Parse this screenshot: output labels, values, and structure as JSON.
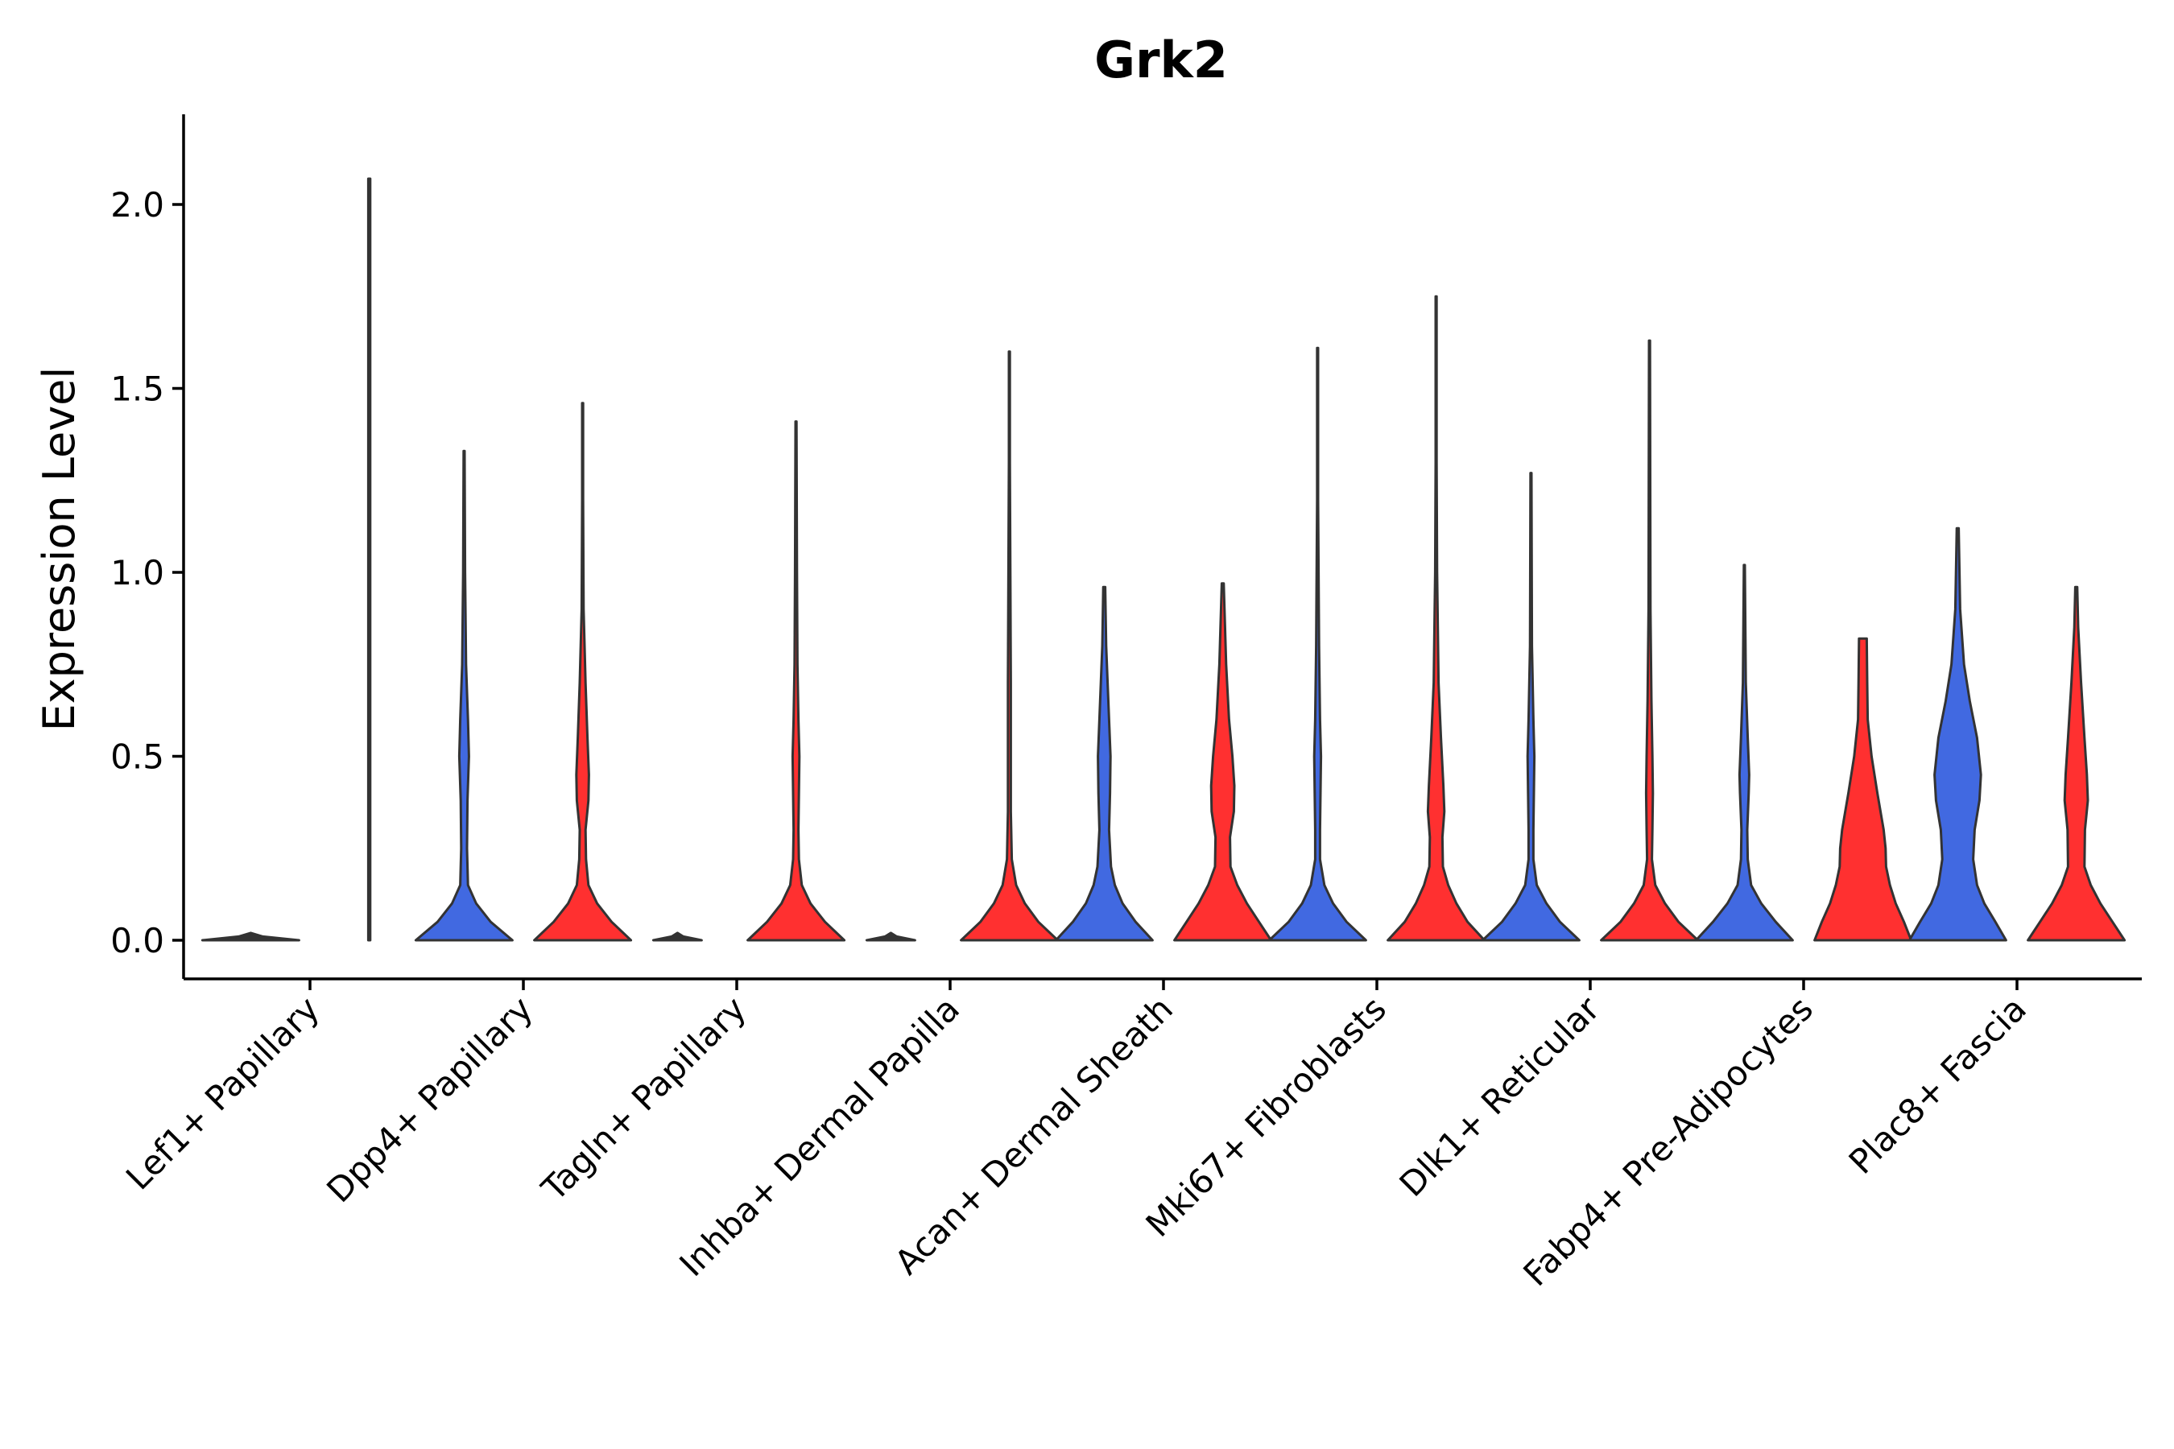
{
  "chart_data": {
    "type": "violin",
    "title": "Grk2",
    "xlabel": "",
    "ylabel": "Expression Level",
    "ylim": [
      -0.11,
      2.25
    ],
    "yticks": [
      0.0,
      0.5,
      1.0,
      1.5,
      2.0
    ],
    "ytick_labels": [
      "0.0",
      "0.5",
      "1.0",
      "1.5",
      "2.0"
    ],
    "grid": false,
    "legend": "none",
    "colors": {
      "group1": "#4169E1",
      "group2": "#FF3030",
      "single": "#333333"
    },
    "categories": [
      "Lef1+ Papillary",
      "Dpp4+ Papillary",
      "Tagln+ Papillary",
      "Inhba+ Dermal Papilla",
      "Acan+ Dermal Sheath",
      "Mki67+ Fibroblasts",
      "Dlk1+ Reticular",
      "Fabp4+ Pre-Adipocytes",
      "Plac8+ Fascia"
    ],
    "violins": [
      {
        "category": "Lef1+ Papillary",
        "group": "group1",
        "max": 0.0,
        "profile": [
          [
            0,
            1.0
          ],
          [
            0.01,
            0.25
          ],
          [
            0.02,
            0
          ]
        ]
      },
      {
        "category": "Lef1+ Papillary",
        "group": "group2",
        "max": 2.07,
        "profile": [
          [
            0,
            0.02
          ],
          [
            2.07,
            0.02
          ]
        ]
      },
      {
        "category": "Dpp4+ Papillary",
        "group": "group1",
        "max": 1.33,
        "profile": [
          [
            0,
            1.0
          ],
          [
            0.05,
            0.55
          ],
          [
            0.1,
            0.25
          ],
          [
            0.15,
            0.08
          ],
          [
            0.25,
            0.06
          ],
          [
            0.38,
            0.07
          ],
          [
            0.5,
            0.1
          ],
          [
            0.6,
            0.08
          ],
          [
            0.75,
            0.04
          ],
          [
            1.0,
            0.02
          ],
          [
            1.33,
            0.01
          ]
        ]
      },
      {
        "category": "Dpp4+ Papillary",
        "group": "group2",
        "max": 1.46,
        "profile": [
          [
            0,
            1.0
          ],
          [
            0.05,
            0.6
          ],
          [
            0.1,
            0.3
          ],
          [
            0.15,
            0.12
          ],
          [
            0.22,
            0.07
          ],
          [
            0.3,
            0.06
          ],
          [
            0.38,
            0.12
          ],
          [
            0.45,
            0.13
          ],
          [
            0.55,
            0.1
          ],
          [
            0.7,
            0.06
          ],
          [
            0.9,
            0.02
          ],
          [
            1.2,
            0.01
          ],
          [
            1.46,
            0.01
          ]
        ]
      },
      {
        "category": "Tagln+ Papillary",
        "group": "group1",
        "max": 0.0,
        "profile": [
          [
            0,
            0.5
          ],
          [
            0.01,
            0.12
          ],
          [
            0.02,
            0
          ]
        ]
      },
      {
        "category": "Tagln+ Papillary",
        "group": "group2",
        "max": 1.41,
        "profile": [
          [
            0,
            1.0
          ],
          [
            0.05,
            0.6
          ],
          [
            0.1,
            0.3
          ],
          [
            0.15,
            0.12
          ],
          [
            0.22,
            0.06
          ],
          [
            0.3,
            0.05
          ],
          [
            0.4,
            0.06
          ],
          [
            0.5,
            0.07
          ],
          [
            0.6,
            0.05
          ],
          [
            0.75,
            0.03
          ],
          [
            1.0,
            0.02
          ],
          [
            1.41,
            0.01
          ]
        ]
      },
      {
        "category": "Inhba+ Dermal Papilla",
        "group": "group1",
        "max": 0.0,
        "profile": [
          [
            0,
            0.5
          ],
          [
            0.01,
            0.12
          ],
          [
            0.02,
            0
          ]
        ]
      },
      {
        "category": "Inhba+ Dermal Papilla",
        "group": "group2",
        "max": 1.6,
        "profile": [
          [
            0,
            1.0
          ],
          [
            0.05,
            0.6
          ],
          [
            0.1,
            0.32
          ],
          [
            0.15,
            0.14
          ],
          [
            0.22,
            0.05
          ],
          [
            0.35,
            0.03
          ],
          [
            0.5,
            0.03
          ],
          [
            0.7,
            0.03
          ],
          [
            1.0,
            0.02
          ],
          [
            1.3,
            0.01
          ],
          [
            1.6,
            0.01
          ]
        ]
      },
      {
        "category": "Acan+ Dermal Sheath",
        "group": "group1",
        "max": 0.96,
        "profile": [
          [
            0,
            1.0
          ],
          [
            0.05,
            0.65
          ],
          [
            0.1,
            0.38
          ],
          [
            0.15,
            0.22
          ],
          [
            0.2,
            0.14
          ],
          [
            0.3,
            0.1
          ],
          [
            0.4,
            0.12
          ],
          [
            0.5,
            0.13
          ],
          [
            0.6,
            0.1
          ],
          [
            0.7,
            0.07
          ],
          [
            0.8,
            0.04
          ],
          [
            0.96,
            0.02
          ]
        ]
      },
      {
        "category": "Acan+ Dermal Sheath",
        "group": "group2",
        "max": 0.97,
        "profile": [
          [
            0,
            1.0
          ],
          [
            0.05,
            0.75
          ],
          [
            0.1,
            0.5
          ],
          [
            0.15,
            0.3
          ],
          [
            0.2,
            0.16
          ],
          [
            0.28,
            0.15
          ],
          [
            0.35,
            0.23
          ],
          [
            0.42,
            0.24
          ],
          [
            0.5,
            0.2
          ],
          [
            0.6,
            0.13
          ],
          [
            0.75,
            0.07
          ],
          [
            0.97,
            0.02
          ]
        ]
      },
      {
        "category": "Mki67+ Fibroblasts",
        "group": "group1",
        "max": 1.61,
        "profile": [
          [
            0,
            1.0
          ],
          [
            0.05,
            0.6
          ],
          [
            0.1,
            0.32
          ],
          [
            0.15,
            0.14
          ],
          [
            0.22,
            0.05
          ],
          [
            0.3,
            0.05
          ],
          [
            0.4,
            0.06
          ],
          [
            0.5,
            0.07
          ],
          [
            0.6,
            0.05
          ],
          [
            0.8,
            0.03
          ],
          [
            1.2,
            0.01
          ],
          [
            1.61,
            0.01
          ]
        ]
      },
      {
        "category": "Mki67+ Fibroblasts",
        "group": "group2",
        "max": 1.75,
        "profile": [
          [
            0,
            1.0
          ],
          [
            0.05,
            0.65
          ],
          [
            0.1,
            0.42
          ],
          [
            0.15,
            0.25
          ],
          [
            0.2,
            0.14
          ],
          [
            0.28,
            0.13
          ],
          [
            0.35,
            0.17
          ],
          [
            0.42,
            0.15
          ],
          [
            0.55,
            0.1
          ],
          [
            0.7,
            0.05
          ],
          [
            1.0,
            0.02
          ],
          [
            1.3,
            0.01
          ],
          [
            1.75,
            0.01
          ]
        ]
      },
      {
        "category": "Dlk1+ Reticular",
        "group": "group1",
        "max": 1.27,
        "profile": [
          [
            0,
            1.0
          ],
          [
            0.05,
            0.6
          ],
          [
            0.1,
            0.32
          ],
          [
            0.15,
            0.12
          ],
          [
            0.22,
            0.05
          ],
          [
            0.3,
            0.05
          ],
          [
            0.4,
            0.06
          ],
          [
            0.5,
            0.07
          ],
          [
            0.6,
            0.05
          ],
          [
            0.8,
            0.02
          ],
          [
            1.27,
            0.01
          ]
        ]
      },
      {
        "category": "Dlk1+ Reticular",
        "group": "group2",
        "max": 1.63,
        "profile": [
          [
            0,
            1.0
          ],
          [
            0.05,
            0.6
          ],
          [
            0.1,
            0.32
          ],
          [
            0.15,
            0.12
          ],
          [
            0.22,
            0.05
          ],
          [
            0.3,
            0.06
          ],
          [
            0.4,
            0.07
          ],
          [
            0.5,
            0.06
          ],
          [
            0.65,
            0.04
          ],
          [
            0.9,
            0.02
          ],
          [
            1.63,
            0.01
          ]
        ]
      },
      {
        "category": "Fabp4+ Pre-Adipocytes",
        "group": "group1",
        "max": 1.02,
        "profile": [
          [
            0,
            1.0
          ],
          [
            0.05,
            0.65
          ],
          [
            0.1,
            0.35
          ],
          [
            0.15,
            0.14
          ],
          [
            0.22,
            0.07
          ],
          [
            0.3,
            0.06
          ],
          [
            0.4,
            0.09
          ],
          [
            0.45,
            0.1
          ],
          [
            0.55,
            0.07
          ],
          [
            0.7,
            0.03
          ],
          [
            1.02,
            0.01
          ]
        ]
      },
      {
        "category": "Fabp4+ Pre-Adipocytes",
        "group": "group2",
        "max": 0.82,
        "profile": [
          [
            0,
            1.0
          ],
          [
            0.05,
            0.85
          ],
          [
            0.1,
            0.68
          ],
          [
            0.15,
            0.56
          ],
          [
            0.2,
            0.48
          ],
          [
            0.25,
            0.47
          ],
          [
            0.3,
            0.43
          ],
          [
            0.4,
            0.3
          ],
          [
            0.5,
            0.18
          ],
          [
            0.6,
            0.1
          ],
          [
            0.7,
            0.09
          ],
          [
            0.82,
            0.08
          ]
        ]
      },
      {
        "category": "Plac8+ Fascia",
        "group": "group1",
        "max": 1.12,
        "profile": [
          [
            0,
            1.0
          ],
          [
            0.05,
            0.78
          ],
          [
            0.1,
            0.55
          ],
          [
            0.15,
            0.4
          ],
          [
            0.22,
            0.32
          ],
          [
            0.3,
            0.35
          ],
          [
            0.38,
            0.45
          ],
          [
            0.45,
            0.48
          ],
          [
            0.55,
            0.4
          ],
          [
            0.65,
            0.25
          ],
          [
            0.75,
            0.13
          ],
          [
            0.9,
            0.05
          ],
          [
            1.12,
            0.02
          ]
        ]
      },
      {
        "category": "Plac8+ Fascia",
        "group": "group2",
        "max": 0.96,
        "profile": [
          [
            0,
            1.0
          ],
          [
            0.05,
            0.75
          ],
          [
            0.1,
            0.5
          ],
          [
            0.15,
            0.3
          ],
          [
            0.2,
            0.17
          ],
          [
            0.3,
            0.18
          ],
          [
            0.38,
            0.24
          ],
          [
            0.45,
            0.22
          ],
          [
            0.55,
            0.17
          ],
          [
            0.7,
            0.1
          ],
          [
            0.85,
            0.04
          ],
          [
            0.96,
            0.02
          ]
        ]
      }
    ]
  }
}
